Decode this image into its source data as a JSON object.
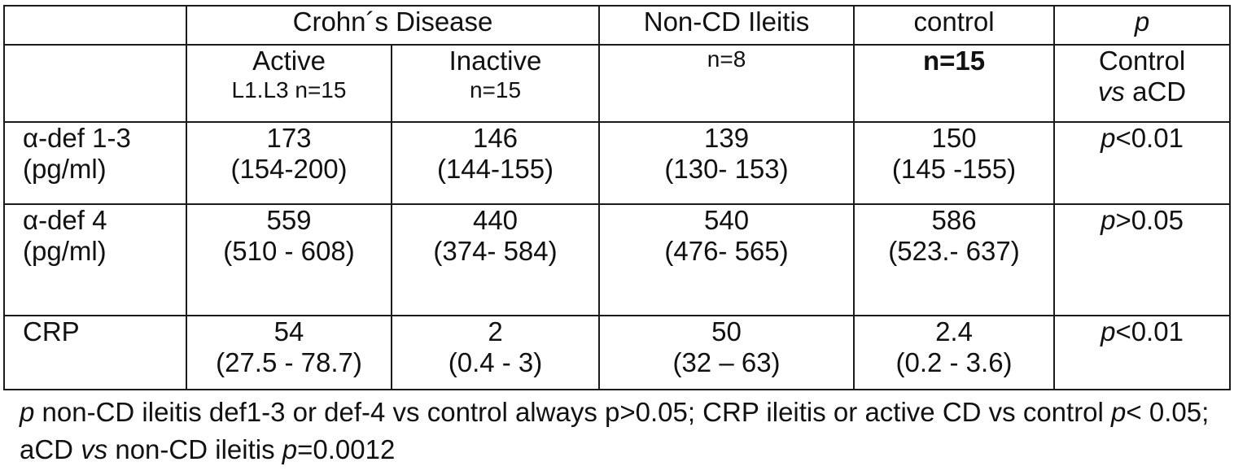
{
  "header": {
    "crohns": "Crohn´s Disease",
    "noncd": "Non-CD Ileitis",
    "control": "control",
    "p": "p"
  },
  "subheader": {
    "active": "Active",
    "active_n": "L1.L3 n=15",
    "inactive": "Inactive",
    "inactive_n": "n=15",
    "noncd_n": "n=8",
    "control_n": "n=15",
    "p_line1": "Control",
    "p_vs": "vs",
    "p_acd": " aCD"
  },
  "rows": [
    {
      "label1": "α-def 1-3",
      "label2": "(pg/ml)",
      "active": [
        "173",
        "(154-200)"
      ],
      "inactive": [
        "146",
        "(144-155)"
      ],
      "noncd": [
        "139",
        "(130- 153)"
      ],
      "control": [
        "150",
        "(145 -155)"
      ],
      "p_sym": "p",
      "p_val": "<0.01"
    },
    {
      "label1": "α-def 4",
      "label2": "(pg/ml)",
      "active": [
        "559",
        "(510 - 608)"
      ],
      "inactive": [
        "440",
        "(374- 584)"
      ],
      "noncd": [
        "540",
        "(476- 565)"
      ],
      "control": [
        "586",
        "(523.- 637)"
      ],
      "p_sym": "p",
      "p_val": ">0.05"
    },
    {
      "label1": "CRP",
      "active": [
        "54",
        "(27.5 - 78.7)"
      ],
      "inactive": [
        "2",
        "(0.4 - 3)"
      ],
      "noncd": [
        "50",
        "(32 – 63)"
      ],
      "control": [
        "2.4",
        "(0.2 - 3.6)"
      ],
      "p_sym": "p",
      "p_val": "<0.01"
    }
  ],
  "footnote": {
    "p1": "p",
    "t1": " non-CD ileitis def1-3 or def-4 vs control always p>0.05; CRP ileitis or active CD vs control ",
    "p2": "p",
    "t2": "< 0.05; aCD ",
    "vs": "vs",
    "t3": " non-CD ileitis ",
    "p3": "p",
    "t4": "=0.0012"
  }
}
